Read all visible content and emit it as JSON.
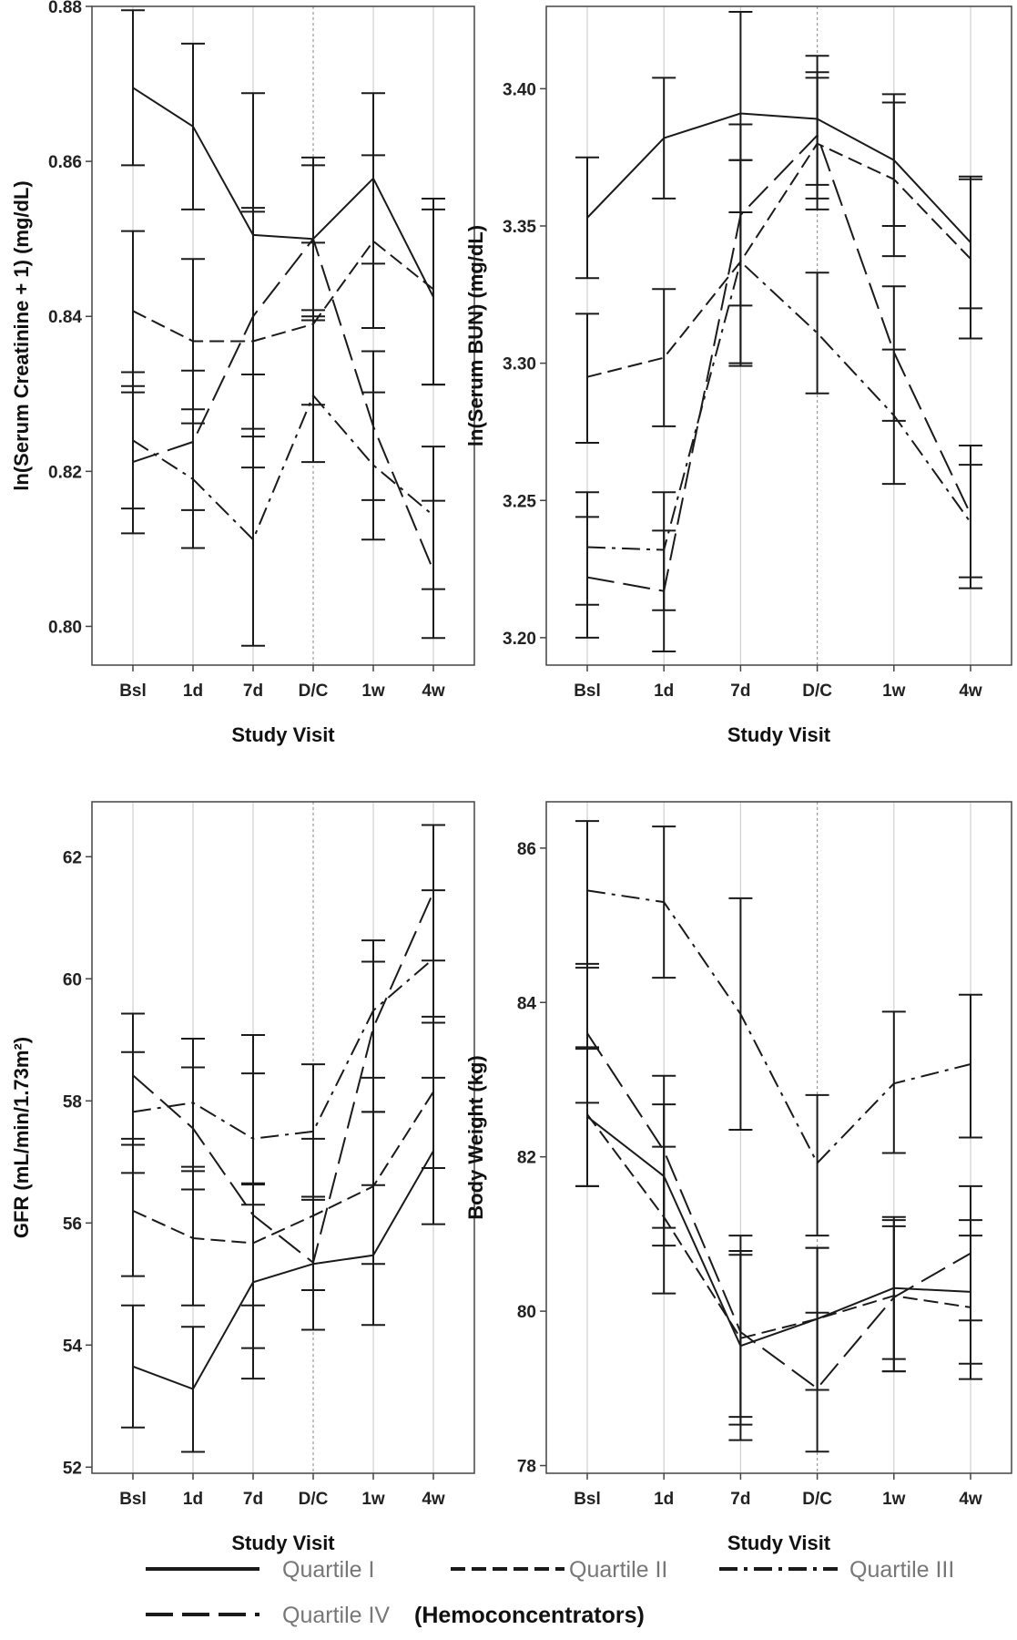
{
  "chart_data": [
    {
      "type": "line",
      "categories": [
        "Bsl",
        "1d",
        "7d",
        "D/C",
        "1w",
        "4w"
      ],
      "xlabel": "Study Visit",
      "ylabel": "ln(Serum Creatinine + 1) (mg/dL)",
      "ylim": [
        0.795,
        0.88
      ],
      "yticks": [
        "0.80",
        "0.82",
        "0.84",
        "0.86",
        "0.88"
      ],
      "grid": "vertical",
      "reference_line_at": "D/C",
      "error_bars": true,
      "series": [
        {
          "name": "Quartile I",
          "values": [
            0.8695,
            0.8645,
            0.8505,
            0.85,
            0.8578,
            0.8425
          ],
          "lower": [
            0.8595,
            0.8538,
            0.8325,
            0.8395,
            0.8468,
            0.8312
          ],
          "upper": [
            0.8795,
            0.8752,
            0.8688,
            0.8605,
            0.8688,
            0.8538
          ]
        },
        {
          "name": "Quartile II",
          "values": [
            0.8407,
            0.8368,
            0.8368,
            0.839,
            0.8497,
            0.8435
          ],
          "lower": [
            0.8302,
            0.8262,
            0.8245,
            0.8286,
            0.8385,
            0.8312
          ],
          "upper": [
            0.851,
            0.8474,
            0.854,
            0.8495,
            0.8608,
            0.8552
          ]
        },
        {
          "name": "Quartile III",
          "values": [
            0.824,
            0.819,
            0.8112,
            0.8298,
            0.8208,
            0.8143
          ],
          "lower": [
            0.8152,
            0.8101,
            0.7975,
            0.8212,
            0.8112,
            0.8048
          ],
          "upper": [
            0.8328,
            0.828,
            0.8255,
            0.8408,
            0.8302,
            0.8232
          ]
        },
        {
          "name": "Quartile IV",
          "values": [
            0.8212,
            0.8238,
            0.84,
            0.85,
            0.8258,
            0.8072
          ],
          "lower": [
            0.812,
            0.815,
            0.8205,
            0.84,
            0.8163,
            0.7985
          ],
          "upper": [
            0.831,
            0.833,
            0.8535,
            0.8595,
            0.8355,
            0.8162
          ]
        }
      ]
    },
    {
      "type": "line",
      "categories": [
        "Bsl",
        "1d",
        "7d",
        "D/C",
        "1w",
        "4w"
      ],
      "xlabel": "Study Visit",
      "ylabel": "ln(Serum BUN) (mg/dL)",
      "ylim": [
        3.19,
        3.43
      ],
      "yticks": [
        "3.20",
        "3.25",
        "3.30",
        "3.35",
        "3.40"
      ],
      "grid": "vertical",
      "reference_line_at": "D/C",
      "error_bars": true,
      "series": [
        {
          "name": "Quartile I",
          "values": [
            3.353,
            3.382,
            3.391,
            3.389,
            3.374,
            3.344
          ],
          "lower": [
            3.331,
            3.36,
            3.355,
            3.365,
            3.35,
            3.32
          ],
          "upper": [
            3.375,
            3.404,
            3.428,
            3.412,
            3.398,
            3.368
          ]
        },
        {
          "name": "Quartile II",
          "values": [
            3.295,
            3.302,
            3.337,
            3.38,
            3.367,
            3.338
          ],
          "lower": [
            3.271,
            3.277,
            3.299,
            3.356,
            3.339,
            3.309
          ],
          "upper": [
            3.318,
            3.327,
            3.374,
            3.404,
            3.395,
            3.367
          ]
        },
        {
          "name": "Quartile III",
          "values": [
            3.233,
            3.232,
            3.337,
            3.311,
            3.281,
            3.242
          ],
          "lower": [
            3.212,
            3.21,
            3.3,
            3.289,
            3.256,
            3.218
          ],
          "upper": [
            3.253,
            3.253,
            3.374,
            3.333,
            3.305,
            3.27
          ]
        },
        {
          "name": "Quartile IV",
          "values": [
            3.222,
            3.217,
            3.354,
            3.383,
            3.304,
            3.245
          ],
          "lower": [
            3.2,
            3.195,
            3.321,
            3.36,
            3.279,
            3.222
          ],
          "upper": [
            3.244,
            3.239,
            3.387,
            3.406,
            3.328,
            3.263
          ]
        }
      ]
    },
    {
      "type": "line",
      "categories": [
        "Bsl",
        "1d",
        "7d",
        "D/C",
        "1w",
        "4w"
      ],
      "xlabel": "Study Visit",
      "ylabel": "GFR (mL/min/1.73m²)",
      "ylim": [
        51.9,
        62.9
      ],
      "yticks": [
        "52",
        "54",
        "56",
        "58",
        "60",
        "62"
      ],
      "grid": "vertical",
      "reference_line_at": "D/C",
      "error_bars": true,
      "series": [
        {
          "name": "Quartile I",
          "values": [
            53.65,
            53.28,
            55.03,
            55.33,
            55.47,
            57.18
          ],
          "lower": [
            52.65,
            52.25,
            53.45,
            54.25,
            54.33,
            55.98
          ],
          "upper": [
            54.65,
            54.3,
            56.63,
            56.43,
            56.62,
            58.38
          ]
        },
        {
          "name": "Quartile II",
          "values": [
            56.2,
            55.75,
            55.67,
            56.12,
            56.6,
            58.15
          ],
          "lower": [
            55.13,
            54.65,
            54.65,
            54.9,
            55.33,
            56.9
          ],
          "upper": [
            57.28,
            56.85,
            56.65,
            57.38,
            57.82,
            59.38
          ]
        },
        {
          "name": "Quartile III",
          "values": [
            57.82,
            57.97,
            57.38,
            57.5,
            59.48,
            60.33
          ],
          "lower": [
            56.82,
            56.92,
            56.3,
            56.38,
            58.38,
            59.28
          ],
          "upper": [
            58.8,
            59.02,
            58.45,
            58.6,
            60.63,
            61.45
          ]
        },
        {
          "name": "Quartile IV",
          "values": [
            58.42,
            57.55,
            56.13,
            55.35,
            59.2,
            61.42
          ],
          "lower": [
            57.38,
            56.55,
            53.95,
            54.25,
            57.82,
            60.3
          ],
          "upper": [
            59.43,
            58.55,
            59.08,
            56.43,
            60.28,
            62.52
          ]
        }
      ]
    },
    {
      "type": "line",
      "categories": [
        "Bsl",
        "1d",
        "7d",
        "D/C",
        "1w",
        "4w"
      ],
      "xlabel": "Study Visit",
      "ylabel": "Body Weight (kg)",
      "ylim": [
        77.9,
        86.6
      ],
      "yticks": [
        "78",
        "80",
        "82",
        "84",
        "86"
      ],
      "grid": "vertical",
      "reference_line_at": "D/C",
      "error_bars": true,
      "series": [
        {
          "name": "Quartile I",
          "values": [
            82.52,
            81.75,
            79.55,
            79.9,
            80.3,
            80.25
          ],
          "lower": [
            81.62,
            80.85,
            78.33,
            78.98,
            79.38,
            79.32
          ],
          "upper": [
            83.42,
            82.68,
            80.78,
            80.82,
            81.22,
            81.18
          ]
        },
        {
          "name": "Quartile II",
          "values": [
            82.55,
            81.22,
            79.65,
            79.9,
            80.2,
            80.05
          ],
          "lower": [
            81.62,
            80.23,
            78.53,
            78.98,
            79.22,
            79.12
          ],
          "upper": [
            83.4,
            82.13,
            80.73,
            80.82,
            81.1,
            80.98
          ]
        },
        {
          "name": "Quartile III",
          "values": [
            85.45,
            85.3,
            83.85,
            81.92,
            82.95,
            83.2
          ],
          "lower": [
            84.45,
            84.32,
            82.35,
            80.98,
            82.05,
            82.25
          ],
          "upper": [
            86.35,
            86.28,
            85.35,
            82.8,
            83.88,
            84.1
          ]
        },
        {
          "name": "Quartile IV",
          "values": [
            83.6,
            82.08,
            79.73,
            79.0,
            80.18,
            80.75
          ],
          "lower": [
            82.7,
            81.08,
            78.63,
            78.18,
            79.22,
            79.88
          ],
          "upper": [
            84.5,
            83.05,
            80.98,
            79.98,
            81.18,
            81.62
          ]
        }
      ]
    }
  ],
  "legend": {
    "placement": "bottom",
    "items": [
      {
        "label": "Quartile I",
        "style": "solid"
      },
      {
        "label": "Quartile II",
        "style": "dash"
      },
      {
        "label": "Quartile III",
        "style": "dashdot"
      },
      {
        "label": "Quartile IV",
        "style": "longdash"
      }
    ],
    "suffix": "(Hemoconcentrators)"
  },
  "colors": {
    "line": "#1a1a1a",
    "grid": "#cfcfcf",
    "frame": "#444444",
    "legend_text": "#777777"
  }
}
